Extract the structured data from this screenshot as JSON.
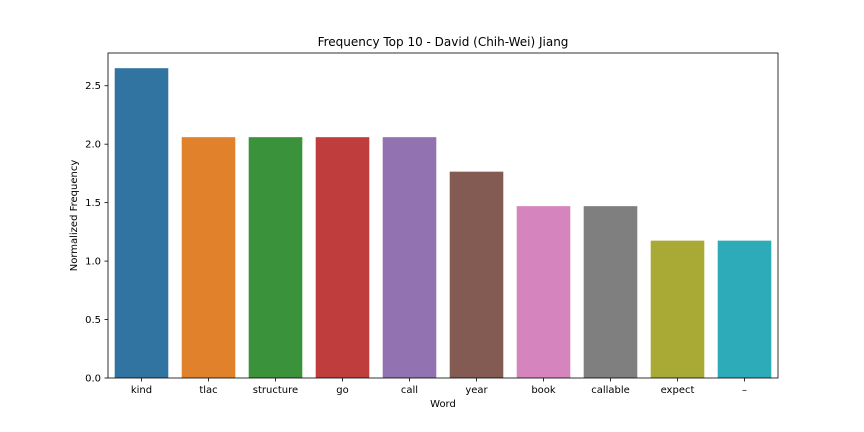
{
  "chart_data": {
    "type": "bar",
    "title": "Frequency Top 10 - David (Chih-Wei) Jiang",
    "xlabel": "Word",
    "ylabel": "Normalized Frequency",
    "categories": [
      "kind",
      "tlac",
      "structure",
      "go",
      "call",
      "year",
      "book",
      "callable",
      "expect",
      "–"
    ],
    "values": [
      2.65,
      2.06,
      2.06,
      2.06,
      2.06,
      1.765,
      1.47,
      1.47,
      1.175,
      1.175
    ],
    "colors": [
      "#3274a1",
      "#e1812c",
      "#3a923a",
      "#c03d3e",
      "#9372b2",
      "#845b53",
      "#d684bd",
      "#7f7f7f",
      "#a9aa35",
      "#2eabb8"
    ],
    "ylim": [
      0,
      2.78
    ],
    "yticks": [
      "0.0",
      "0.5",
      "1.0",
      "1.5",
      "2.0",
      "2.5"
    ],
    "grid": false,
    "legend": "none"
  }
}
